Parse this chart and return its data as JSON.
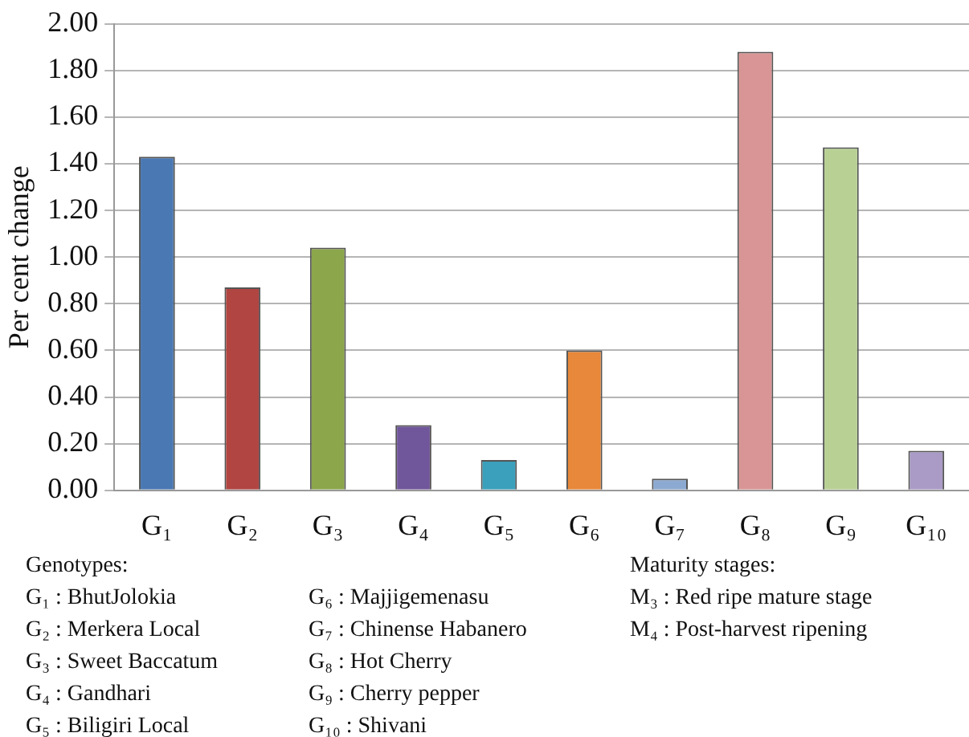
{
  "chart_data": {
    "type": "bar",
    "ylabel": "Per cent change",
    "categories": [
      "G₁",
      "G₂",
      "G₃",
      "G₄",
      "G₅",
      "G₆",
      "G₇",
      "G₈",
      "G₉",
      "G₁₀"
    ],
    "values": [
      1.43,
      0.87,
      1.04,
      0.28,
      0.13,
      0.6,
      0.05,
      1.88,
      1.47,
      0.17
    ],
    "colors": [
      "#4a78b3",
      "#b04542",
      "#8ba64b",
      "#70569a",
      "#3aa0bb",
      "#e8883a",
      "#8ca9d1",
      "#d99595",
      "#b8d094",
      "#a99bc6"
    ],
    "ylim": [
      0,
      2
    ],
    "yticks": [
      {
        "value": 0,
        "label": "0.00"
      },
      {
        "value": 0.2,
        "label": "0.20"
      },
      {
        "value": 0.4,
        "label": "0.40"
      },
      {
        "value": 0.6,
        "label": "0.60"
      },
      {
        "value": 0.8,
        "label": "0.80"
      },
      {
        "value": 1,
        "label": "1.00"
      },
      {
        "value": 1.2,
        "label": "1.20"
      },
      {
        "value": 1.4,
        "label": "1.40"
      },
      {
        "value": 1.6,
        "label": "1.60"
      },
      {
        "value": 1.8,
        "label": "1.80"
      },
      {
        "value": 2,
        "label": "2.00"
      }
    ],
    "grid": "y",
    "legend": false,
    "annotations": [
      "Genotypes:",
      "G₁ : BhutJolokia",
      "G₂ : Merkera Local",
      "G₃ : Sweet Baccatum",
      "G₄ : Gandhari",
      "G₅ : Biligiri Local",
      "G₆ : Majjigemenasu",
      "G₇ : Chinense Habanero",
      "G₈ : Hot Cherry",
      "G₉ : Cherry pepper",
      "G₁₀ : Shivani",
      "Maturity stages:",
      "M₃ : Red ripe mature stage",
      "M₄ : Post-harvest ripening"
    ]
  }
}
